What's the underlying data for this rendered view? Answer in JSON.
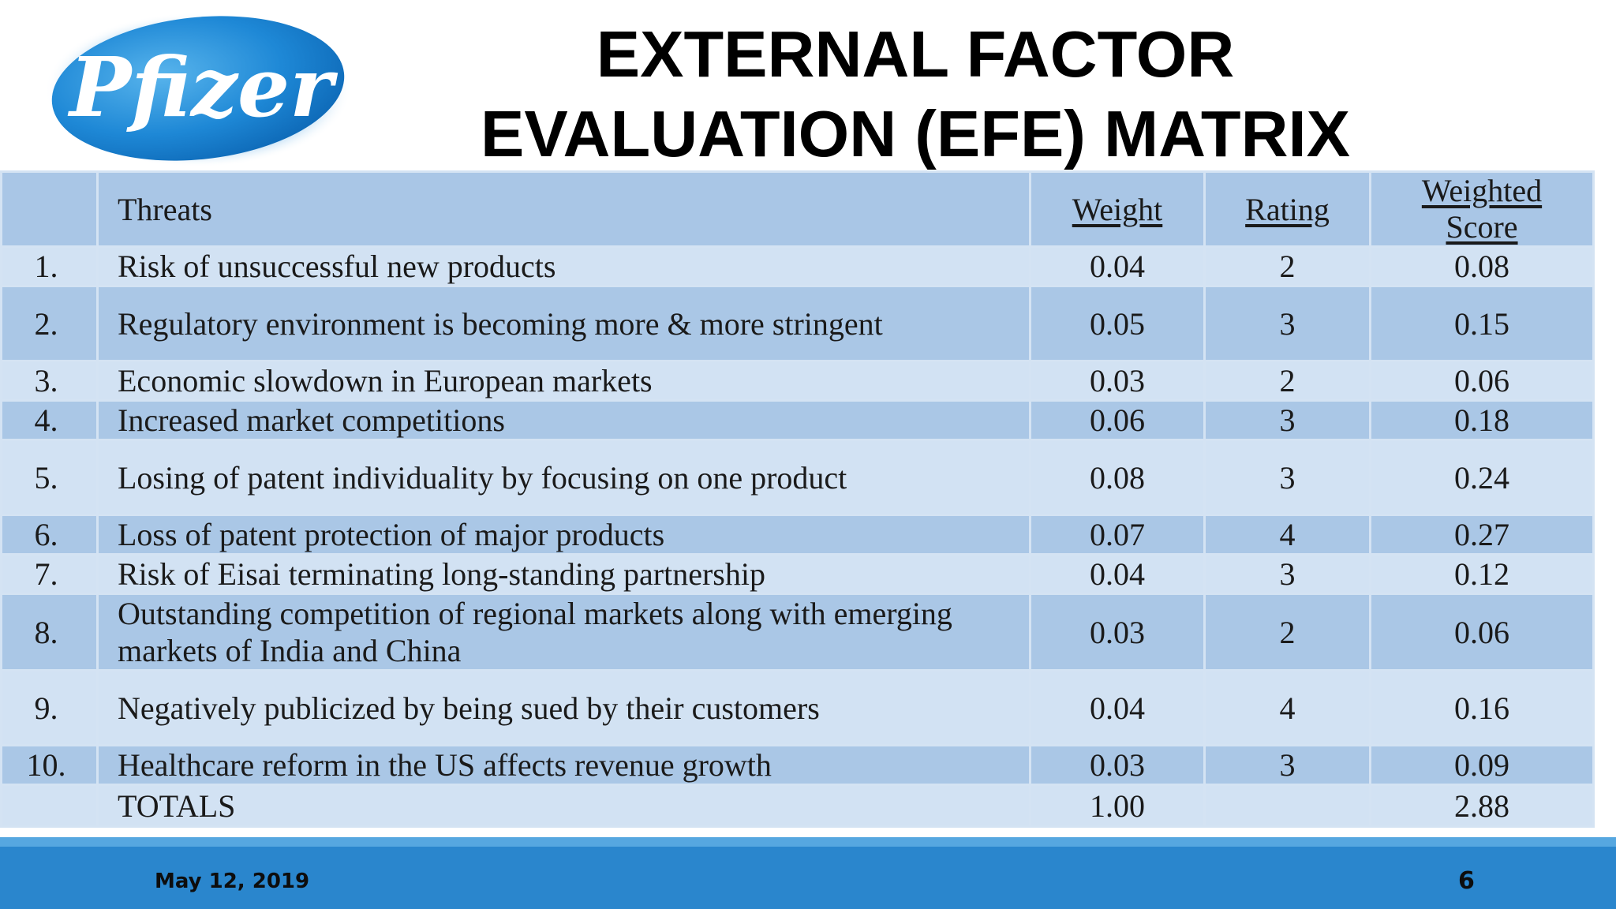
{
  "logo": {
    "text": "Pfizer",
    "icon": "pfizer-logo",
    "colors": {
      "oval_center": "#58b4ec",
      "oval_edge": "#0a62b0",
      "text": "#ffffff"
    }
  },
  "title": {
    "line1": "EXTERNAL FACTOR",
    "line2": "EVALUATION (EFE) MATRIX"
  },
  "table": {
    "headers": {
      "threats": "Threats",
      "weight": "Weight",
      "rating": "Rating",
      "score_line1": "Weighted",
      "score_line2": "Score"
    },
    "rows": [
      {
        "num": "1.",
        "threat": "Risk of unsuccessful new products",
        "weight": "0.04",
        "rating": "2",
        "score": "0.08"
      },
      {
        "num": "2.",
        "threat": "Regulatory environment is becoming more & more stringent",
        "weight": "0.05",
        "rating": "3",
        "score": "0.15"
      },
      {
        "num": "3.",
        "threat": "Economic slowdown in European markets",
        "weight": "0.03",
        "rating": "2",
        "score": "0.06"
      },
      {
        "num": "4.",
        "threat": "Increased market competitions",
        "weight": "0.06",
        "rating": "3",
        "score": "0.18"
      },
      {
        "num": "5.",
        "threat": "Losing of patent individuality by focusing on one product",
        "weight": "0.08",
        "rating": "3",
        "score": "0.24"
      },
      {
        "num": "6.",
        "threat": "Loss of patent protection of major products",
        "weight": "0.07",
        "rating": "4",
        "score": "0.27"
      },
      {
        "num": "7.",
        "threat": "Risk of Eisai terminating long-standing partnership",
        "weight": "0.04",
        "rating": "3",
        "score": "0.12"
      },
      {
        "num": "8.",
        "threat": "Outstanding competition of regional markets along with emerging markets of India and China",
        "weight": "0.03",
        "rating": "2",
        "score": "0.06"
      },
      {
        "num": "9.",
        "threat": "Negatively publicized by being sued by their customers",
        "weight": "0.04",
        "rating": "4",
        "score": "0.16"
      },
      {
        "num": "10.",
        "threat": "Healthcare reform in the US affects revenue growth",
        "weight": "0.03",
        "rating": "3",
        "score": "0.09"
      }
    ],
    "totals": {
      "label": "TOTALS",
      "weight": "1.00",
      "rating": "",
      "score": "2.88"
    },
    "colors": {
      "header": "#a9c6e6",
      "light_row": "#d2e2f3",
      "dark_row": "#aac7e6",
      "grid": "#d4e3f3"
    }
  },
  "footer": {
    "date": "May 12, 2019",
    "page": "6",
    "colors": {
      "bar": "#2a86cd",
      "stripe": "#56a7e0"
    }
  }
}
